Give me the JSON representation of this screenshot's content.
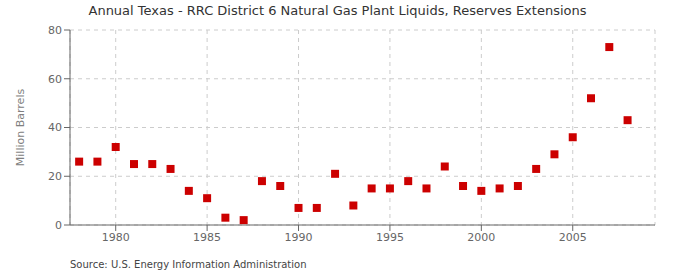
{
  "chart_data": {
    "type": "scatter",
    "title": "Annual Texas - RRC District 6 Natural Gas Plant Liquids, Reserves Extensions",
    "ylabel": "Million Barrels",
    "annotations": [
      "Source: U.S. Energy Information Administration"
    ],
    "x": [
      1978,
      1979,
      1980,
      1981,
      1982,
      1983,
      1984,
      1985,
      1986,
      1987,
      1988,
      1989,
      1990,
      1991,
      1992,
      1993,
      1994,
      1995,
      1996,
      1997,
      1998,
      1999,
      2000,
      2001,
      2002,
      2003,
      2004,
      2005,
      2006,
      2007,
      2008
    ],
    "values": [
      26,
      26,
      32,
      25,
      25,
      23,
      14,
      11,
      3,
      2,
      18,
      16,
      7,
      7,
      21,
      8,
      15,
      15,
      18,
      15,
      24,
      16,
      14,
      15,
      16,
      23,
      29,
      36,
      52,
      73,
      43
    ],
    "color": "#cc0000",
    "marker": "square",
    "xlim": [
      1977.5,
      2009.5
    ],
    "ylim": [
      0,
      80
    ],
    "xticks": [
      1980,
      1985,
      1990,
      1995,
      2000,
      2005
    ],
    "yticks": [
      0,
      20,
      40,
      60,
      80
    ],
    "grid": true
  }
}
